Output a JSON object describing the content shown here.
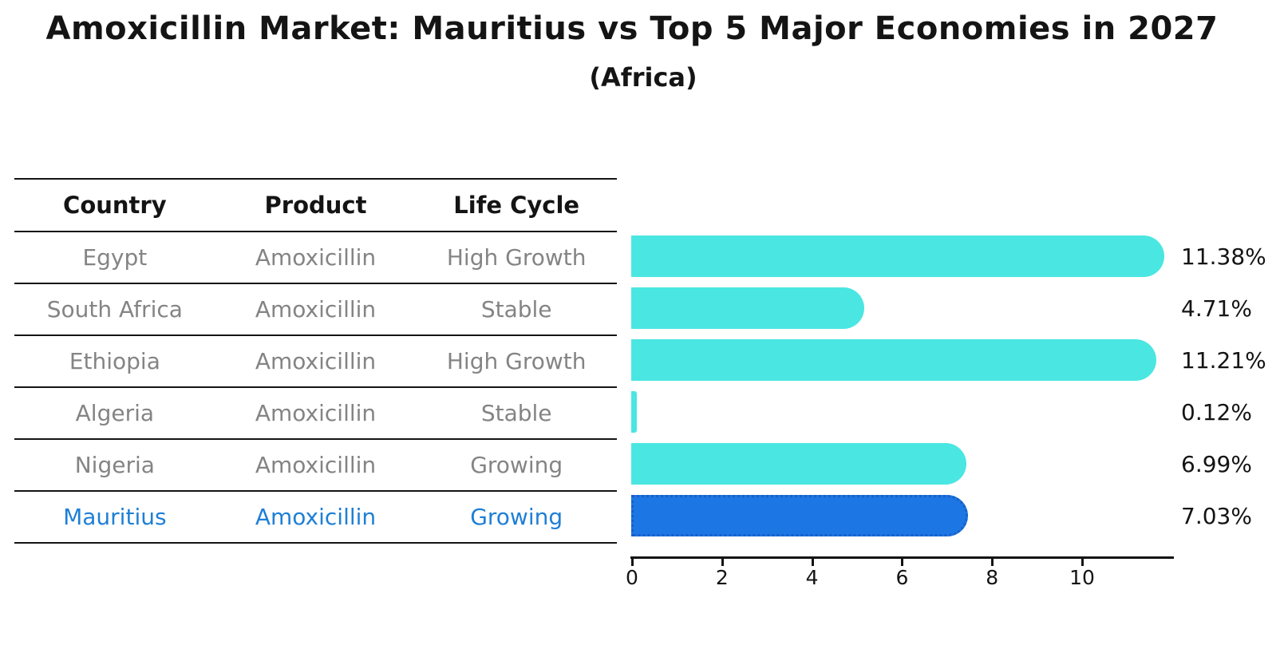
{
  "title": "Amoxicillin Market: Mauritius vs Top 5 Major Economies in 2027",
  "subtitle": "(Africa)",
  "table": {
    "headers": [
      "Country",
      "Product",
      "Life Cycle"
    ],
    "rows": [
      {
        "country": "Egypt",
        "product": "Amoxicillin",
        "life_cycle": "High Growth",
        "highlight": false
      },
      {
        "country": "South Africa",
        "product": "Amoxicillin",
        "life_cycle": "Stable",
        "highlight": false
      },
      {
        "country": "Ethiopia",
        "product": "Amoxicillin",
        "life_cycle": "High Growth",
        "highlight": false
      },
      {
        "country": "Algeria",
        "product": "Amoxicillin",
        "life_cycle": "Stable",
        "highlight": false
      },
      {
        "country": "Nigeria",
        "product": "Amoxicillin",
        "life_cycle": "Growing",
        "highlight": false
      },
      {
        "country": "Mauritius",
        "product": "Amoxicillin",
        "life_cycle": "Growing",
        "highlight": true
      }
    ]
  },
  "chart_data": {
    "type": "bar",
    "orientation": "horizontal",
    "title": "Amoxicillin Market: Mauritius vs Top 5 Major Economies in 2027",
    "subtitle": "(Africa)",
    "categories": [
      "Egypt",
      "South Africa",
      "Ethiopia",
      "Algeria",
      "Nigeria",
      "Mauritius"
    ],
    "values": [
      11.38,
      4.71,
      11.21,
      0.12,
      6.99,
      7.03
    ],
    "value_labels": [
      "11.38%",
      "4.71%",
      "11.21%",
      "0.12%",
      "6.99%",
      "7.03%"
    ],
    "x_ticks": [
      0,
      2,
      4,
      6,
      8,
      10
    ],
    "xlim": [
      0,
      12
    ],
    "grid": false,
    "legend": false,
    "highlight_index": 5,
    "bar_color": "#4ae6e2",
    "highlight_color": "#1c76e3",
    "highlight_text_color": "#1e7fd6",
    "text_color": "#141414",
    "muted_text_color": "#848484"
  }
}
